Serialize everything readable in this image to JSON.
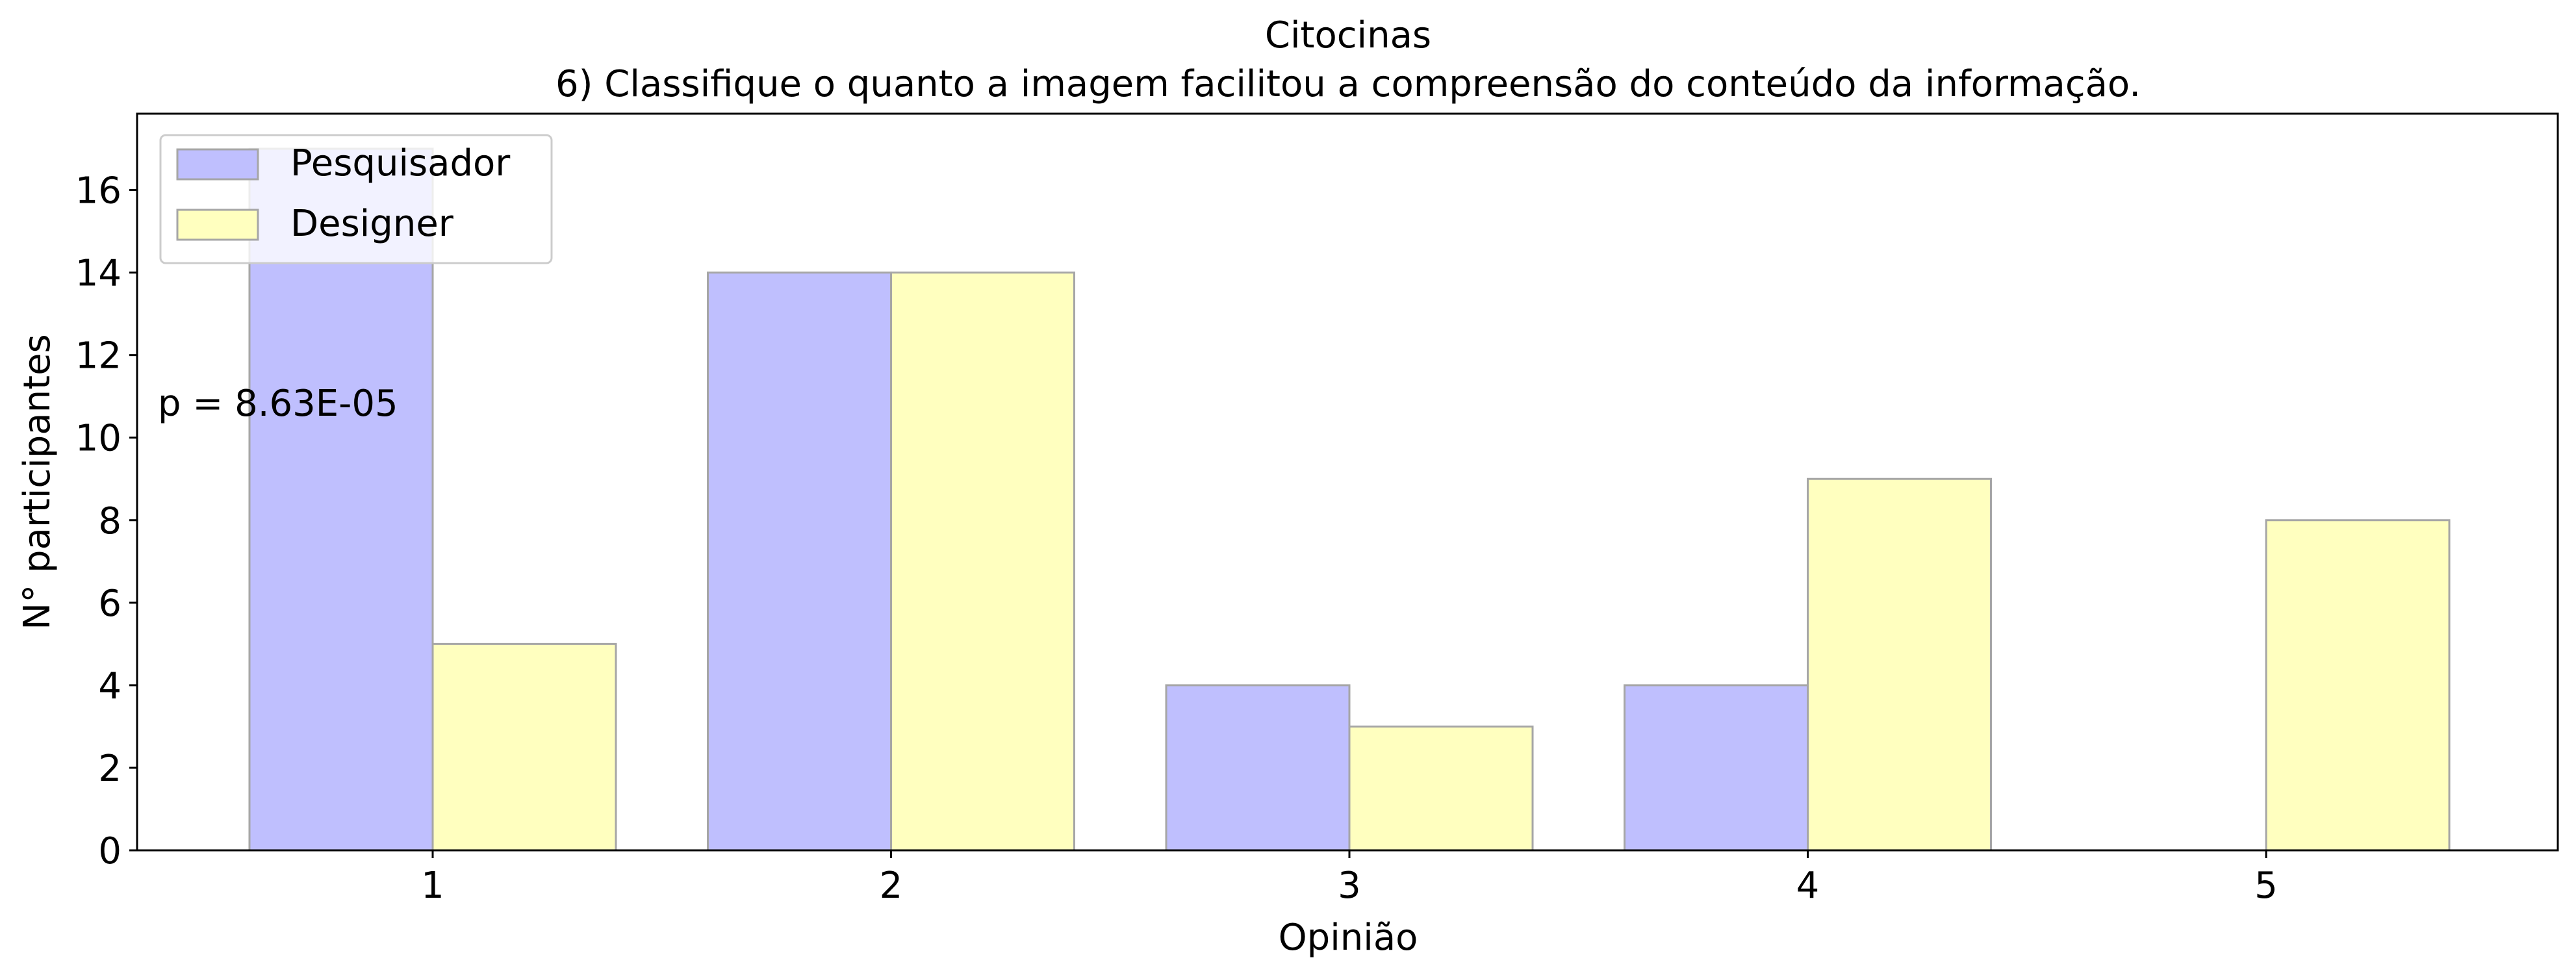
{
  "chart_data": {
    "type": "bar",
    "title": "Citocinas",
    "subtitle": "6) Classifique o quanto a imagem facilitou a compreensão do conteúdo da informação.",
    "xlabel": "Opinião",
    "ylabel": "N° participantes",
    "categories": [
      "1",
      "2",
      "3",
      "4",
      "5"
    ],
    "series": [
      {
        "name": "Pesquisador",
        "values": [
          17,
          14,
          4,
          4,
          0
        ],
        "color": "#bfbffe"
      },
      {
        "name": "Designer",
        "values": [
          5,
          14,
          3,
          9,
          8
        ],
        "color": "#ffffbf"
      }
    ],
    "ylim": [
      0,
      17.85
    ],
    "yticks": [
      0,
      2,
      4,
      6,
      8,
      10,
      12,
      14,
      16
    ],
    "annotation": "p = 8.63E-05",
    "legend": "top-left",
    "grid": false
  }
}
